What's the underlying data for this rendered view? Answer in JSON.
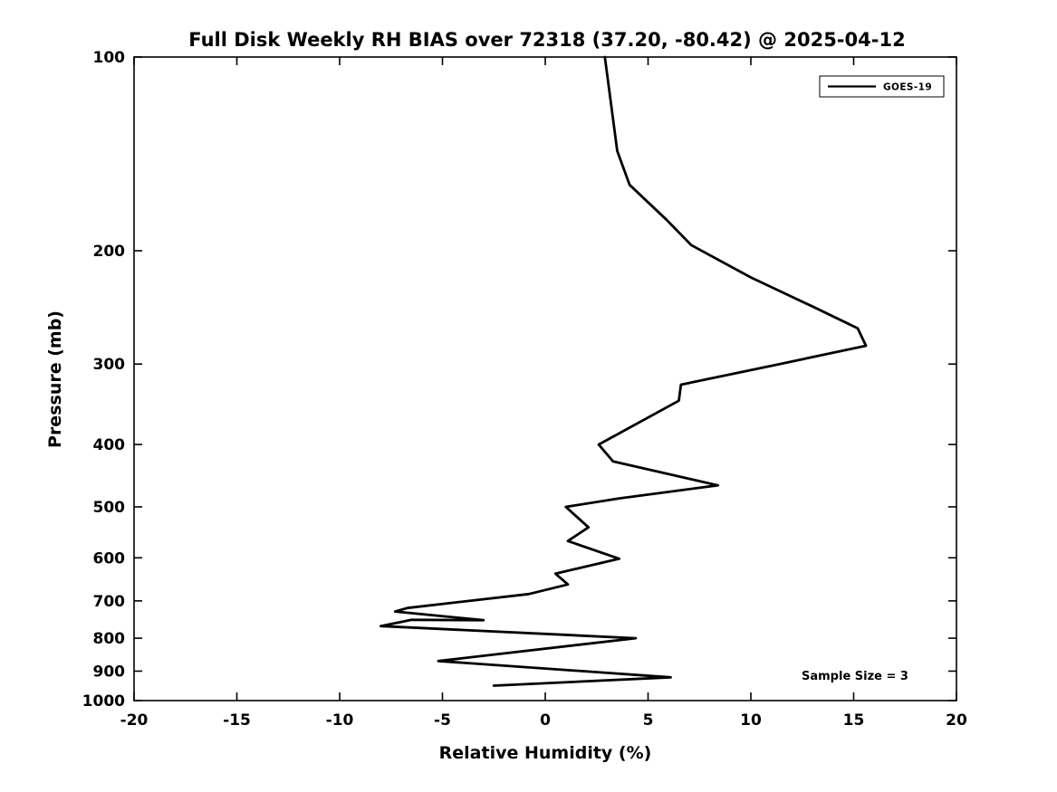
{
  "figure": {
    "background": "#ffffff",
    "line_color": "#000000"
  },
  "chart_data": {
    "type": "line",
    "title": "Full Disk Weekly RH BIAS over 72318 (37.20, -80.42) @ 2025-04-12",
    "xlabel": "Relative Humidity (%)",
    "ylabel": "Pressure (mb)",
    "xlim": [
      -20,
      20
    ],
    "ylim": [
      1000,
      100
    ],
    "yscale": "log",
    "grid": false,
    "xticks": [
      -20,
      -15,
      -10,
      -5,
      0,
      5,
      10,
      15,
      20
    ],
    "yticks": [
      100,
      200,
      300,
      400,
      500,
      600,
      700,
      800,
      900,
      1000
    ],
    "legend_position": "top-right",
    "annotation": "Sample Size = 3",
    "series": [
      {
        "name": "GOES-19",
        "color": "#000000",
        "points_rh_pressure": [
          [
            2.9,
            100
          ],
          [
            3.5,
            140
          ],
          [
            4.1,
            158
          ],
          [
            5.9,
            179
          ],
          [
            7.1,
            196
          ],
          [
            10.0,
            220
          ],
          [
            13.1,
            245
          ],
          [
            15.2,
            264
          ],
          [
            15.6,
            281
          ],
          [
            11.4,
            300
          ],
          [
            6.6,
            323
          ],
          [
            6.5,
            342
          ],
          [
            2.6,
            400
          ],
          [
            3.3,
            425
          ],
          [
            8.4,
            463
          ],
          [
            3.6,
            485
          ],
          [
            1.0,
            500
          ],
          [
            2.1,
            538
          ],
          [
            1.1,
            565
          ],
          [
            3.6,
            602
          ],
          [
            0.5,
            635
          ],
          [
            1.1,
            660
          ],
          [
            -0.8,
            683
          ],
          [
            -6.7,
            718
          ],
          [
            -7.3,
            727
          ],
          [
            -3.0,
            750
          ],
          [
            -6.5,
            749
          ],
          [
            -8.0,
            766
          ],
          [
            4.4,
            800
          ],
          [
            -5.2,
            868
          ],
          [
            6.1,
            920
          ],
          [
            -2.5,
            948
          ]
        ]
      }
    ]
  }
}
